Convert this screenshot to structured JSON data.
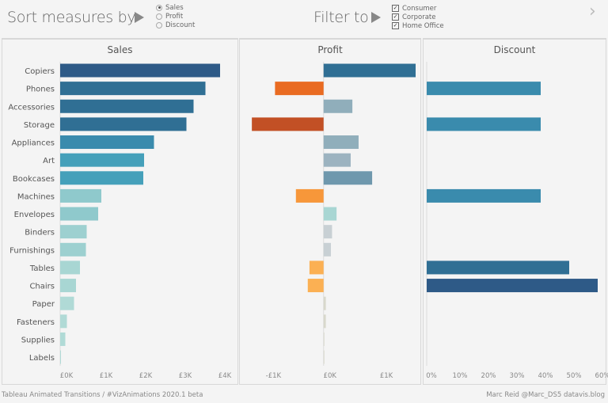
{
  "header": {
    "sort_label": "Sort measures by",
    "sort_options": [
      {
        "label": "Sales",
        "selected": true
      },
      {
        "label": "Profit",
        "selected": false
      },
      {
        "label": "Discount",
        "selected": false
      }
    ],
    "filter_label": "Filter to",
    "filter_options": [
      {
        "label": "Consumer",
        "checked": true
      },
      {
        "label": "Corporate",
        "checked": true
      },
      {
        "label": "Home Office",
        "checked": true
      }
    ],
    "next_icon": "chevron-right-icon"
  },
  "footer": {
    "left": "Tableau Animated Transitions / #VizAnimations 2020.1 beta",
    "right": "Marc Reid  @Marc_DS5  datavis.blog"
  },
  "chart_data": [
    {
      "type": "bar",
      "title": "Sales",
      "orientation": "horizontal",
      "categories": [
        "Copiers",
        "Phones",
        "Accessories",
        "Storage",
        "Appliances",
        "Art",
        "Bookcases",
        "Machines",
        "Envelopes",
        "Binders",
        "Furnishings",
        "Tables",
        "Chairs",
        "Paper",
        "Fasteners",
        "Supplies",
        "Labels"
      ],
      "values": [
        4.04,
        3.67,
        3.37,
        3.19,
        2.37,
        2.12,
        2.1,
        1.04,
        0.96,
        0.67,
        0.65,
        0.5,
        0.4,
        0.35,
        0.17,
        0.13,
        0.02
      ],
      "unit": "£K",
      "xlim": [
        0,
        4.2
      ],
      "ticks": [
        {
          "v": 0,
          "label": "£0K"
        },
        {
          "v": 1,
          "label": "£1K"
        },
        {
          "v": 2,
          "label": "£2K"
        },
        {
          "v": 3,
          "label": "£3K"
        },
        {
          "v": 4,
          "label": "£4K"
        }
      ],
      "colors": [
        "#2e5a87",
        "#306f94",
        "#306f94",
        "#306f94",
        "#3a8bad",
        "#45a0ba",
        "#45a0ba",
        "#8fc9cc",
        "#8fc9cc",
        "#9dd0d0",
        "#9dd0d0",
        "#a8d6d3",
        "#a8d6d3",
        "#b0dad6",
        "#b0dad6",
        "#b0dad6",
        "#b0dad6"
      ]
    },
    {
      "type": "bar",
      "title": "Profit",
      "orientation": "horizontal",
      "values": [
        1.63,
        -0.86,
        0.51,
        -1.27,
        0.62,
        0.48,
        0.86,
        -0.49,
        0.23,
        0.15,
        0.13,
        -0.25,
        -0.28,
        0.04,
        0.04,
        0.01,
        0.01
      ],
      "unit": "£K",
      "xlim": [
        -1.3,
        1.7
      ],
      "ticks": [
        {
          "v": -1,
          "label": "-£1K"
        },
        {
          "v": 0,
          "label": "£0K"
        },
        {
          "v": 1,
          "label": "£1K"
        }
      ],
      "colors": [
        "#306f94",
        "#e96b22",
        "#90aebb",
        "#c25025",
        "#90aebb",
        "#9cb3c0",
        "#6f98ad",
        "#f7973a",
        "#a8d6d3",
        "#c8d0d4",
        "#c8d0d4",
        "#fbb053",
        "#fbb053",
        "#d8d8cc",
        "#d8d8cc",
        "#d8d8cc",
        "#d8d8cc"
      ]
    },
    {
      "type": "bar",
      "title": "Discount",
      "orientation": "horizontal",
      "values": [
        0,
        40,
        0,
        40,
        0,
        0,
        0,
        40,
        0,
        0,
        0,
        50,
        60,
        0,
        0,
        0,
        0
      ],
      "unit": "%",
      "xlim": [
        0,
        60
      ],
      "ticks": [
        {
          "v": 0,
          "label": "0%"
        },
        {
          "v": 10,
          "label": "10%"
        },
        {
          "v": 20,
          "label": "20%"
        },
        {
          "v": 30,
          "label": "30%"
        },
        {
          "v": 40,
          "label": "40%"
        },
        {
          "v": 50,
          "label": "50%"
        },
        {
          "v": 60,
          "label": "60%"
        }
      ],
      "colors": [
        "#3a8bad",
        "#3a8bad",
        "#3a8bad",
        "#3a8bad",
        "#3a8bad",
        "#3a8bad",
        "#3a8bad",
        "#3a8bad",
        "#3a8bad",
        "#3a8bad",
        "#3a8bad",
        "#306f94",
        "#2e5a87",
        "#3a8bad",
        "#3a8bad",
        "#3a8bad",
        "#3a8bad"
      ]
    }
  ]
}
